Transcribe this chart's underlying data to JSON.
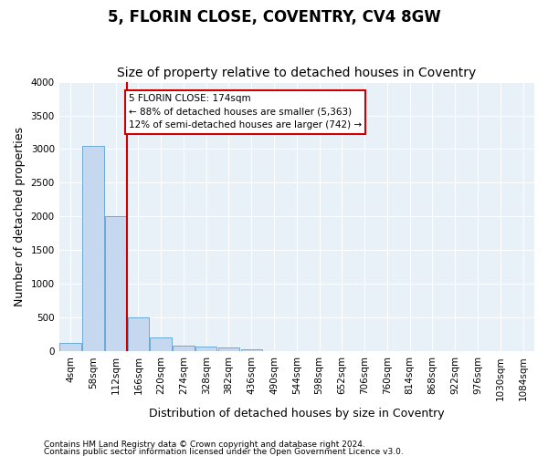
{
  "title": "5, FLORIN CLOSE, COVENTRY, CV4 8GW",
  "subtitle": "Size of property relative to detached houses in Coventry",
  "xlabel": "Distribution of detached houses by size in Coventry",
  "ylabel": "Number of detached properties",
  "bin_labels": [
    "4sqm",
    "58sqm",
    "112sqm",
    "166sqm",
    "220sqm",
    "274sqm",
    "328sqm",
    "382sqm",
    "436sqm",
    "490sqm",
    "544sqm",
    "598sqm",
    "652sqm",
    "706sqm",
    "760sqm",
    "814sqm",
    "868sqm",
    "922sqm",
    "976sqm",
    "1030sqm",
    "1084sqm"
  ],
  "bar_values": [
    120,
    3050,
    2000,
    500,
    210,
    80,
    65,
    50,
    35,
    0,
    0,
    0,
    0,
    0,
    0,
    0,
    0,
    0,
    0,
    0,
    0
  ],
  "bar_color": "#c5d8f0",
  "bar_edge_color": "#6aaad4",
  "vline_x_index": 3,
  "vline_color": "#cc0000",
  "annotation_text": "5 FLORIN CLOSE: 174sqm\n← 88% of detached houses are smaller (5,363)\n12% of semi-detached houses are larger (742) →",
  "annotation_box_color": "#ffffff",
  "annotation_box_edge_color": "#cc0000",
  "ylim": [
    0,
    4000
  ],
  "yticks": [
    0,
    500,
    1000,
    1500,
    2000,
    2500,
    3000,
    3500,
    4000
  ],
  "bg_color": "#e8f0f8",
  "footer1": "Contains HM Land Registry data © Crown copyright and database right 2024.",
  "footer2": "Contains public sector information licensed under the Open Government Licence v3.0.",
  "title_fontsize": 12,
  "subtitle_fontsize": 10,
  "axis_fontsize": 9,
  "tick_fontsize": 7.5
}
